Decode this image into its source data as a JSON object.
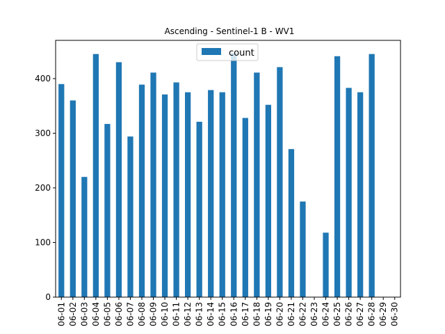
{
  "chart_data": {
    "type": "bar",
    "title": "Ascending - Sentinel-1 B - WV1",
    "xlabel": "",
    "ylabel": "",
    "categories": [
      "06-01",
      "06-02",
      "06-03",
      "06-04",
      "06-05",
      "06-06",
      "06-07",
      "06-08",
      "06-09",
      "06-10",
      "06-11",
      "06-12",
      "06-13",
      "06-14",
      "06-15",
      "06-16",
      "06-17",
      "06-18",
      "06-19",
      "06-20",
      "06-21",
      "06-22",
      "06-23",
      "06-24",
      "06-25",
      "06-26",
      "06-27",
      "06-28",
      "06-29",
      "06-30"
    ],
    "series": [
      {
        "name": "count",
        "color": "#1f77b4",
        "values": [
          390,
          360,
          220,
          445,
          317,
          430,
          294,
          389,
          411,
          371,
          393,
          375,
          321,
          379,
          375,
          447,
          328,
          411,
          352,
          421,
          271,
          175,
          0,
          118,
          441,
          383,
          375,
          445,
          0,
          0
        ]
      }
    ],
    "ylim": [
      0,
      470
    ],
    "yticks": [
      0,
      100,
      200,
      300,
      400
    ],
    "grid": false,
    "legend": {
      "position": "top-center",
      "label": "count"
    }
  }
}
